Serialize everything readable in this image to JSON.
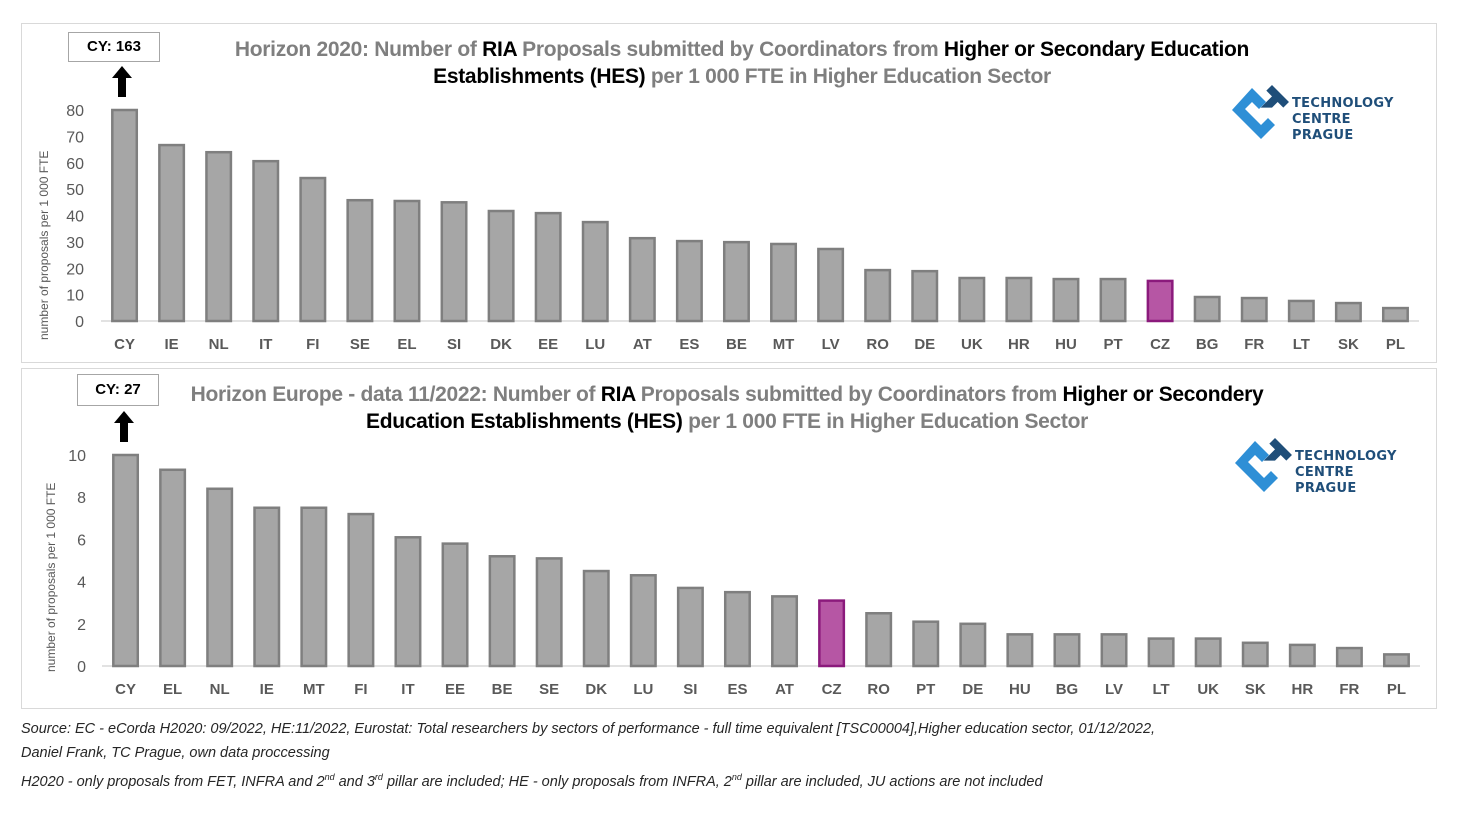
{
  "colors": {
    "bar_fill": "#a6a6a6",
    "bar_stroke": "#7f7f7f",
    "highlight_fill": "#b656a4",
    "highlight_stroke": "#8b1a7c",
    "axis_line": "#d9d9d9",
    "title_gray": "#7f7f7f",
    "logo_dark": "#1f4e79",
    "logo_light": "#2e8fd6"
  },
  "logo": {
    "line1": "TECHNOLOGY",
    "line2": "CENTRE PRAGUE"
  },
  "charts": [
    {
      "id": "h2020",
      "title_parts": [
        {
          "text": "Horizon 2020: Number of ",
          "style": "gray"
        },
        {
          "text": "RIA",
          "style": "dark"
        },
        {
          "text": " Proposals submitted by Coordinators from ",
          "style": "gray"
        },
        {
          "text": "Higher or Secondary Education",
          "style": "dark"
        }
      ],
      "title_parts_line2": [
        {
          "text": "Establishments (HES)",
          "style": "dark"
        },
        {
          "text": " per 1 000 FTE in Higher Education Sector",
          "style": "gray"
        }
      ],
      "callout": "CY: 163",
      "ylabel": "number of proposals per  1 000 FTE"
    },
    {
      "id": "he",
      "title_parts": [
        {
          "text": "Horizon Europe - data 11/2022: Number of ",
          "style": "gray"
        },
        {
          "text": "RIA",
          "style": "dark"
        },
        {
          "text": " Proposals submitted by Coordinators from ",
          "style": "gray"
        },
        {
          "text": "Higher or Secondery",
          "style": "dark"
        }
      ],
      "title_parts_line2": [
        {
          "text": "Education Establishments (HES)",
          "style": "dark"
        },
        {
          "text": " per 1 000 FTE in Higher Education Sector",
          "style": "gray"
        }
      ],
      "callout": "CY: 27",
      "ylabel": "number of proposals per 1 000 FTE"
    }
  ],
  "chart_data": [
    {
      "type": "bar",
      "title": "Horizon 2020: Number of RIA Proposals submitted by Coordinators from Higher or Secondary Education Establishments (HES) per 1 000 FTE in Higher Education Sector",
      "xlabel": "",
      "ylabel": "number of proposals per  1 000 FTE",
      "ylim": [
        0,
        80
      ],
      "yticks": [
        0,
        10,
        20,
        30,
        40,
        50,
        60,
        70,
        80
      ],
      "grid": false,
      "highlight": "CZ",
      "annotation": "CY: 163",
      "categories": [
        "CY",
        "IE",
        "NL",
        "IT",
        "FI",
        "SE",
        "EL",
        "SI",
        "DK",
        "EE",
        "LU",
        "AT",
        "ES",
        "BE",
        "MT",
        "LV",
        "RO",
        "DE",
        "UK",
        "HR",
        "HU",
        "PT",
        "CZ",
        "BG",
        "FR",
        "LT",
        "SK",
        "PL"
      ],
      "values": [
        163,
        66.7,
        64.0,
        60.6,
        54.2,
        45.8,
        45.5,
        45.0,
        41.7,
        40.9,
        37.5,
        31.4,
        30.3,
        29.9,
        29.2,
        27.3,
        19.3,
        18.9,
        16.3,
        16.3,
        15.9,
        15.9,
        15.2,
        9.1,
        8.7,
        7.6,
        6.8,
        4.9
      ]
    },
    {
      "type": "bar",
      "title": "Horizon Europe - data 11/2022: Number of RIA Proposals submitted by Coordinators from Higher or Secondery Education Establishments (HES) per 1 000 FTE in Higher Education Sector",
      "xlabel": "",
      "ylabel": "number of proposals per 1 000 FTE",
      "ylim": [
        0,
        10
      ],
      "yticks": [
        0,
        2,
        4,
        6,
        8,
        10
      ],
      "grid": false,
      "highlight": "CZ",
      "annotation": "CY: 27",
      "categories": [
        "CY",
        "EL",
        "NL",
        "IE",
        "MT",
        "FI",
        "IT",
        "EE",
        "BE",
        "SE",
        "DK",
        "LU",
        "SI",
        "ES",
        "AT",
        "CZ",
        "RO",
        "PT",
        "DE",
        "HU",
        "BG",
        "LV",
        "LT",
        "UK",
        "SK",
        "HR",
        "FR",
        "PL"
      ],
      "values": [
        27,
        9.3,
        8.4,
        7.5,
        7.5,
        7.2,
        6.1,
        5.8,
        5.2,
        5.1,
        4.5,
        4.3,
        3.7,
        3.5,
        3.3,
        3.1,
        2.5,
        2.1,
        2.0,
        1.5,
        1.5,
        1.5,
        1.3,
        1.3,
        1.1,
        1.0,
        0.85,
        0.55
      ]
    }
  ],
  "footer": {
    "line1": "Source: EC -  eCorda H2020: 09/2022, HE:11/2022, Eurostat: Total researchers by sectors of performance - full time equivalent [TSC00004],Higher education sector, 01/12/2022,",
    "line2": "Daniel Frank, TC Prague, own data proccessing",
    "line3_a": "H2020 - only proposals from FET,  INFRA and  2",
    "line3_sup1": "nd",
    "line3_b": " and 3",
    "line3_sup2": "rd",
    "line3_c": " pillar are included; HE - only proposals from INFRA, 2",
    "line3_sup3": "nd",
    "line3_d": "  pillar are included, JU actions are not included"
  }
}
